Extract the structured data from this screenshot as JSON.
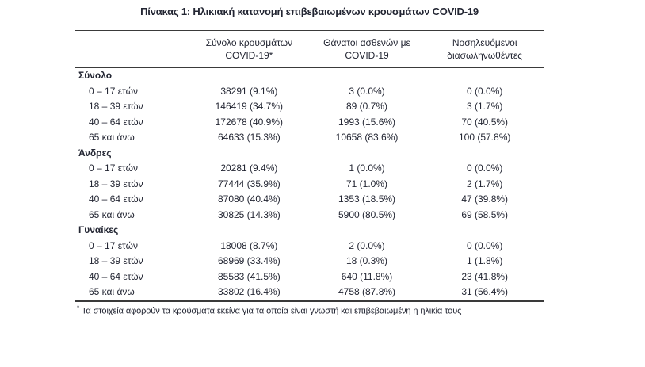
{
  "title": "Πίνακας 1: Ηλικιακή κατανομή επιβεβαιωμένων κρουσμάτων COVID-19",
  "table": {
    "columns": [
      {
        "line1": "Σύνολο κρουσμάτων",
        "line2": "COVID-19*"
      },
      {
        "line1": "Θάνατοι ασθενών με",
        "line2": "COVID-19"
      },
      {
        "line1": "Νοσηλευόμενοι",
        "line2": "διασωληνωθέντες"
      }
    ],
    "sections": [
      {
        "label": "Σύνολο",
        "rows": [
          {
            "label": "0 – 17 ετών",
            "values": [
              "38291 (9.1%)",
              "3 (0.0%)",
              "0 (0.0%)"
            ]
          },
          {
            "label": "18 – 39 ετών",
            "values": [
              "146419 (34.7%)",
              "89 (0.7%)",
              "3 (1.7%)"
            ]
          },
          {
            "label": "40 – 64 ετών",
            "values": [
              "172678 (40.9%)",
              "1993 (15.6%)",
              "70 (40.5%)"
            ]
          },
          {
            "label": "65 και άνω",
            "values": [
              "64633 (15.3%)",
              "10658 (83.6%)",
              "100 (57.8%)"
            ]
          }
        ]
      },
      {
        "label": "Άνδρες",
        "rows": [
          {
            "label": "0 – 17 ετών",
            "values": [
              "20281 (9.4%)",
              "1 (0.0%)",
              "0 (0.0%)"
            ]
          },
          {
            "label": "18 – 39 ετών",
            "values": [
              "77444 (35.9%)",
              "71 (1.0%)",
              "2 (1.7%)"
            ]
          },
          {
            "label": "40 – 64 ετών",
            "values": [
              "87080 (40.4%)",
              "1353 (18.5%)",
              "47 (39.8%)"
            ]
          },
          {
            "label": "65 και άνω",
            "values": [
              "30825 (14.3%)",
              "5900 (80.5%)",
              "69 (58.5%)"
            ]
          }
        ]
      },
      {
        "label": "Γυναίκες",
        "rows": [
          {
            "label": "0 – 17 ετών",
            "values": [
              "18008 (8.7%)",
              "2 (0.0%)",
              "0 (0.0%)"
            ]
          },
          {
            "label": "18 – 39 ετών",
            "values": [
              "68969 (33.4%)",
              "18 (0.3%)",
              "1 (1.8%)"
            ]
          },
          {
            "label": "40 – 64 ετών",
            "values": [
              "85583 (41.5%)",
              "640 (11.8%)",
              "23 (41.8%)"
            ]
          },
          {
            "label": "65 και άνω",
            "values": [
              "33802 (16.4%)",
              "4758 (87.8%)",
              "31 (56.4%)"
            ]
          }
        ]
      }
    ],
    "footnote_marker": "*",
    "footnote": "Τα στοιχεία αφορούν τα κρούσματα εκείνα για τα οποία είναι γνωστή και επιβεβαιωμένη η ηλικία τους"
  },
  "colors": {
    "text": "#232633",
    "rule": "#3a3a3a",
    "background": "#ffffff"
  }
}
